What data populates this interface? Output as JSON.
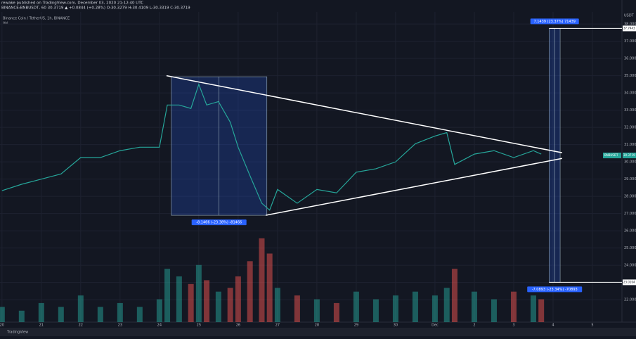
{
  "chart_data": {
    "type": "line",
    "header": {
      "author": "rewake published on TradingView.com, December 03, 2020 21:12:40 UTC",
      "symbol": "BINANCE:BNBUSDT, 60 30.3719 ▲ +0.0844 (+0.28%) O:30.3279 H:30.4109 L:30.3319 C:30.3719",
      "title": "Binance Coin / TetherUS, 1h, BINANCE",
      "volume": "Vol",
      "currency": "USDT",
      "footer": "TradingView"
    },
    "x": [
      0,
      0.5,
      1,
      1.5,
      2,
      2.5,
      3,
      3.5,
      4,
      4.2,
      4.5,
      4.8,
      5,
      5.2,
      5.5,
      5.8,
      6,
      6.3,
      6.6,
      6.8,
      7,
      7.5,
      8,
      8.5,
      9,
      9.5,
      10,
      10.5,
      11,
      11.3,
      11.5,
      12,
      12.5,
      13,
      13.5,
      13.7
    ],
    "series": [
      {
        "name": "BNBUSDT",
        "color": "#26a69a",
        "values": [
          28.33,
          28.7,
          29.0,
          29.3,
          30.25,
          30.25,
          30.65,
          30.85,
          30.85,
          33.3,
          33.3,
          33.1,
          34.5,
          33.3,
          33.5,
          32.3,
          30.85,
          29.2,
          27.6,
          27.2,
          28.4,
          27.6,
          28.4,
          28.2,
          29.4,
          29.6,
          30.0,
          31.05,
          31.5,
          31.7,
          29.85,
          30.45,
          30.65,
          30.25,
          30.65,
          30.45
        ]
      }
    ],
    "volume": {
      "values": [
        20,
        15,
        25,
        20,
        35,
        20,
        25,
        20,
        30,
        70,
        60,
        50,
        75,
        55,
        40,
        45,
        60,
        80,
        110,
        90,
        45,
        35,
        30,
        25,
        40,
        30,
        35,
        40,
        35,
        45,
        70,
        40,
        30,
        40,
        35,
        30
      ],
      "ylim": [
        0,
        120
      ],
      "up_color": "#26a69a",
      "down_color": "#ef5350"
    },
    "xlim": [
      -0.05,
      15.75
    ],
    "ylim": [
      20.7,
      38.7
    ],
    "xticks": [
      {
        "value": 0,
        "label": "20"
      },
      {
        "value": 1,
        "label": "21"
      },
      {
        "value": 2,
        "label": "22"
      },
      {
        "value": 3,
        "label": "23"
      },
      {
        "value": 4,
        "label": "24"
      },
      {
        "value": 5,
        "label": "25"
      },
      {
        "value": 6,
        "label": "26"
      },
      {
        "value": 7,
        "label": "27"
      },
      {
        "value": 8,
        "label": "28"
      },
      {
        "value": 9,
        "label": "29"
      },
      {
        "value": 10,
        "label": "30"
      },
      {
        "value": 11,
        "label": "Dec"
      },
      {
        "value": 12,
        "label": "2"
      },
      {
        "value": 13,
        "label": "3"
      },
      {
        "value": 14,
        "label": "4"
      },
      {
        "value": 15,
        "label": "5"
      }
    ],
    "yticks": [
      {
        "value": 22,
        "label": "22.0000"
      },
      {
        "value": 23,
        "label": "23.0000"
      },
      {
        "value": 24,
        "label": "24.0000"
      },
      {
        "value": 25,
        "label": "25.0000"
      },
      {
        "value": 26,
        "label": "26.0000"
      },
      {
        "value": 27,
        "label": "27.0000"
      },
      {
        "value": 28,
        "label": "28.0000"
      },
      {
        "value": 29,
        "label": "29.0000"
      },
      {
        "value": 30,
        "label": "30.0000"
      },
      {
        "value": 31,
        "label": "31.0000"
      },
      {
        "value": 32,
        "label": "32.0000"
      },
      {
        "value": 33,
        "label": "33.0000"
      },
      {
        "value": 34,
        "label": "34.0000"
      },
      {
        "value": 35,
        "label": "35.0000"
      },
      {
        "value": 36,
        "label": "36.0000"
      },
      {
        "value": 37,
        "label": "37.0000"
      },
      {
        "value": 38,
        "label": "38.0000"
      }
    ],
    "grid": true,
    "trendlines": [
      {
        "x": [
          4.18,
          14.23
        ],
        "y": [
          35.0,
          30.53
        ]
      },
      {
        "x": [
          6.7,
          14.23
        ],
        "y": [
          26.9,
          30.2
        ]
      }
    ],
    "measures": [
      {
        "x": [
          4.3,
          6.73
        ],
        "y": [
          34.94,
          26.9
        ],
        "label": "-8.1466 (-23.38%) -81466",
        "color": "#2962ff"
      },
      {
        "x": [
          13.9,
          14.18
        ],
        "y": [
          37.7443,
          23.0104
        ],
        "label": "7.1439 (23.37%) 71439",
        "label2": "-7.0893 (-23.34%) -70893",
        "color": "#2962ff"
      }
    ],
    "price_tags": [
      {
        "value": 37.7443,
        "label": "37.7443"
      },
      {
        "value": 23.0104,
        "label": "23.0104"
      },
      {
        "value": 30.3719,
        "label": "30.3719"
      }
    ]
  }
}
